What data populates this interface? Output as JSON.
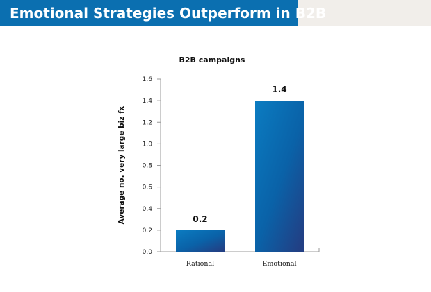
{
  "header": {
    "title": "Emotional Strategies Outperform in B2B",
    "banner_color": "#0b6fb0",
    "strip_color": "#f1eeea"
  },
  "chart_data": {
    "type": "bar",
    "title": "B2B campaigns",
    "xlabel": "",
    "ylabel": "Average no. very large biz fx",
    "categories": [
      "Rational",
      "Emotional"
    ],
    "values": [
      0.2,
      1.4
    ],
    "data_labels": [
      "0.2",
      "1.4"
    ],
    "ylim": [
      0,
      1.6
    ],
    "yticks": [
      "0.0",
      "0.2",
      "0.4",
      "0.6",
      "0.8",
      "1.0",
      "1.2",
      "1.4",
      "1.6"
    ],
    "grid": false,
    "legend": "none",
    "bar_colors": [
      "#0a74b8",
      "#1f4f8f"
    ]
  }
}
